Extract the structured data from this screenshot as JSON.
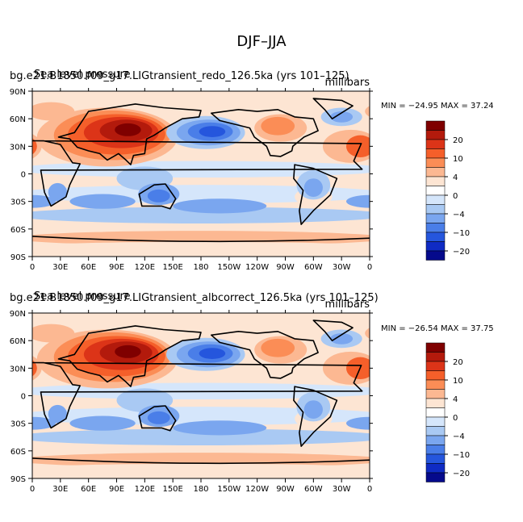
{
  "chart_data": {
    "type": "heatmap",
    "title": "DJF–JJA",
    "xticks": [
      "0",
      "30E",
      "60E",
      "90E",
      "120E",
      "150E",
      "180",
      "150W",
      "120W",
      "90W",
      "60W",
      "30W",
      "0"
    ],
    "yticks": [
      "90N",
      "60N",
      "30N",
      "0",
      "30S",
      "60S",
      "90S"
    ],
    "colorbar_levels": [
      {
        "label": "",
        "color": "#7f0000"
      },
      {
        "label": "20",
        "color": "#b31a0c"
      },
      {
        "label": "",
        "color": "#dc3418"
      },
      {
        "label": "10",
        "color": "#f55f2a"
      },
      {
        "label": "",
        "color": "#fb8d56"
      },
      {
        "label": "4",
        "color": "#fcb892"
      },
      {
        "label": "",
        "color": "#fde5d3"
      },
      {
        "label": "0",
        "color": "#ffffff"
      },
      {
        "label": "",
        "color": "#d5e6fb"
      },
      {
        "label": "−4",
        "color": "#a9c9f3"
      },
      {
        "label": "",
        "color": "#7aa6ef"
      },
      {
        "label": "−10",
        "color": "#4a7ee8"
      },
      {
        "label": "",
        "color": "#2556dd"
      },
      {
        "label": "−20",
        "color": "#0f2bc4"
      },
      {
        "label": "",
        "color": "#050a8c"
      }
    ],
    "panels": [
      {
        "left_title": "bg.e21.B1850.f09_g17.LIGtransient_redo_126.5ka (yrs 101–125)",
        "overlay_title": "Sea level pressure",
        "units": "millibars",
        "stats": "MIN = −24.95   MAX =   37.24",
        "min": -24.95,
        "max": 37.24
      },
      {
        "left_title": "bg.e21.B1850.f09_g17.LIGtransient_albcorrect_126.5ka (yrs 101–125)",
        "overlay_title": "Sea level pressure",
        "units": "millibars",
        "stats": "MIN = −26.54   MAX =   37.75",
        "min": -26.54,
        "max": 37.75
      }
    ]
  }
}
